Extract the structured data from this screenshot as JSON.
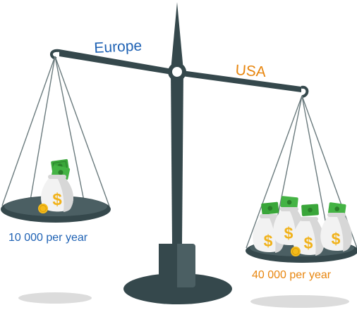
{
  "colors": {
    "europe": "#1f62b4",
    "usa": "#e8860f",
    "scale_dark": "#35484c",
    "scale_mid": "#4b5f63",
    "shadow": "#dcdcdc",
    "bag": "#f2f2f2",
    "bag_shade": "#d7d7d7",
    "dollar": "#f1b21a",
    "cash": "#3aa63a",
    "cash_dark": "#2b7f2b",
    "coin": "#f4bb1b"
  },
  "scale": {
    "left_label": "Europe",
    "right_label": "USA"
  },
  "left_pan": {
    "amount_text": "10 000 per year",
    "bags": [
      {
        "symbol": "$"
      }
    ],
    "coins": [
      {
        "symbol": "$"
      }
    ]
  },
  "right_pan": {
    "amount_text": "40 000 per year",
    "bags": [
      {
        "symbol": "$"
      },
      {
        "symbol": "$"
      },
      {
        "symbol": "$"
      },
      {
        "symbol": "$"
      }
    ],
    "coins": [
      {
        "symbol": "$"
      }
    ]
  }
}
